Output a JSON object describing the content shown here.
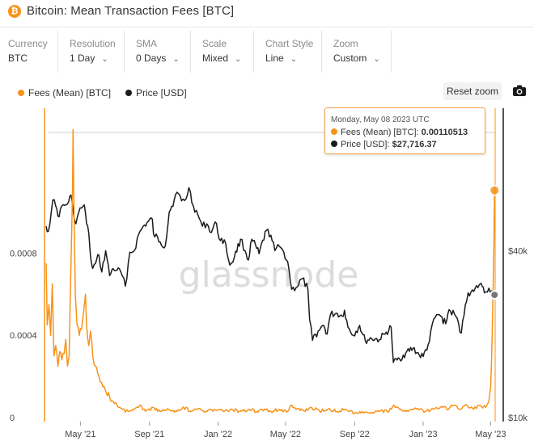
{
  "header": {
    "logo_letter": "₿",
    "title": "Bitcoin: Mean Transaction Fees [BTC]"
  },
  "controls": [
    {
      "label": "Currency",
      "value": "BTC"
    },
    {
      "label": "Resolution",
      "value": "1 Day"
    },
    {
      "label": "SMA",
      "value": "0 Days"
    },
    {
      "label": "Scale",
      "value": "Mixed"
    },
    {
      "label": "Chart Style",
      "value": "Line"
    },
    {
      "label": "Zoom",
      "value": "Custom"
    }
  ],
  "toolbar": {
    "reset_zoom": "Reset zoom",
    "camera_icon": "camera-icon"
  },
  "colors": {
    "fees": "#f7931a",
    "price": "#1a1a1a",
    "watermark": "#dcdcdc"
  },
  "tooltip": {
    "date": "Monday, May 08 2023 UTC",
    "fees_label": "Fees (Mean) [BTC]:",
    "fees_value": "0.00110513",
    "price_label": "Price [USD]:",
    "price_value": "$27,716.37"
  },
  "watermark": "glassnode",
  "chart_data": {
    "type": "line",
    "title": "Bitcoin: Mean Transaction Fees [BTC]",
    "x_ticks": [
      "May '21",
      "Sep '21",
      "Jan '22",
      "May '22",
      "Sep '22",
      "Jan '23",
      "May '23"
    ],
    "x_range": [
      "2021-03-01",
      "2023-05-12"
    ],
    "y_left": {
      "ticks": [
        "0",
        "0.0004",
        "0.0008"
      ],
      "range": [
        0,
        0.00143
      ],
      "scale": "linear"
    },
    "y_right": {
      "ticks": [
        "$10k",
        "$40k"
      ],
      "range": [
        10000,
        115000
      ],
      "scale": "log"
    },
    "legend_position": "top-left",
    "grid": false,
    "series": [
      {
        "name": "Fees (Mean) [BTC]",
        "axis": "left",
        "points": [
          [
            "2021-03-01",
            0.00075
          ],
          [
            "2021-03-03",
            0.00045
          ],
          [
            "2021-03-06",
            0.00055
          ],
          [
            "2021-03-09",
            0.0004
          ],
          [
            "2021-03-12",
            0.00065
          ],
          [
            "2021-03-15",
            0.0003
          ],
          [
            "2021-03-18",
            0.00035
          ],
          [
            "2021-03-22",
            0.00025
          ],
          [
            "2021-03-25",
            0.00032
          ],
          [
            "2021-03-29",
            0.00028
          ],
          [
            "2021-04-02",
            0.00031
          ],
          [
            "2021-04-05",
            0.00038
          ],
          [
            "2021-04-08",
            0.00025
          ],
          [
            "2021-04-11",
            0.0003
          ],
          [
            "2021-04-13",
            0.0006
          ],
          [
            "2021-04-15",
            0.00085
          ],
          [
            "2021-04-17",
            0.0011
          ],
          [
            "2021-04-18",
            0.0014
          ],
          [
            "2021-04-19",
            0.00115
          ],
          [
            "2021-04-20",
            0.00095
          ],
          [
            "2021-04-22",
            0.0006
          ],
          [
            "2021-04-25",
            0.00045
          ],
          [
            "2021-04-29",
            0.0004
          ],
          [
            "2021-05-03",
            0.00043
          ],
          [
            "2021-05-07",
            0.00052
          ],
          [
            "2021-05-10",
            0.0006
          ],
          [
            "2021-05-12",
            0.00045
          ],
          [
            "2021-05-16",
            0.00035
          ],
          [
            "2021-05-19",
            0.00042
          ],
          [
            "2021-05-23",
            0.0003
          ],
          [
            "2021-05-28",
            0.00025
          ],
          [
            "2021-06-03",
            0.0002
          ],
          [
            "2021-06-10",
            0.00015
          ],
          [
            "2021-06-16",
            0.00012
          ],
          [
            "2021-06-22",
            0.0001
          ],
          [
            "2021-06-28",
            8e-05
          ],
          [
            "2021-07-05",
            6e-05
          ],
          [
            "2021-07-15",
            4e-05
          ],
          [
            "2021-07-25",
            3e-05
          ],
          [
            "2021-08-05",
            4e-05
          ],
          [
            "2021-08-15",
            6e-05
          ],
          [
            "2021-08-25",
            3e-05
          ],
          [
            "2021-09-07",
            5e-05
          ],
          [
            "2021-09-20",
            3e-05
          ],
          [
            "2021-10-05",
            4e-05
          ],
          [
            "2021-10-20",
            3e-05
          ],
          [
            "2021-11-05",
            5e-05
          ],
          [
            "2021-11-12",
            3e-05
          ],
          [
            "2021-11-25",
            4e-05
          ],
          [
            "2021-12-10",
            3e-05
          ],
          [
            "2021-12-25",
            4e-05
          ],
          [
            "2022-01-10",
            3e-05
          ],
          [
            "2022-01-25",
            4e-05
          ],
          [
            "2022-02-10",
            3e-05
          ],
          [
            "2022-02-25",
            4e-05
          ],
          [
            "2022-03-10",
            3e-05
          ],
          [
            "2022-03-20",
            4e-05
          ],
          [
            "2022-04-05",
            3e-05
          ],
          [
            "2022-04-20",
            4e-05
          ],
          [
            "2022-05-05",
            3e-05
          ],
          [
            "2022-05-12",
            6e-05
          ],
          [
            "2022-05-20",
            4e-05
          ],
          [
            "2022-06-05",
            3e-05
          ],
          [
            "2022-06-15",
            5e-05
          ],
          [
            "2022-07-01",
            3e-05
          ],
          [
            "2022-07-15",
            4e-05
          ],
          [
            "2022-08-01",
            3e-05
          ],
          [
            "2022-08-15",
            4e-05
          ],
          [
            "2022-09-01",
            2e-05
          ],
          [
            "2022-09-15",
            3e-05
          ],
          [
            "2022-10-01",
            2e-05
          ],
          [
            "2022-10-15",
            3e-05
          ],
          [
            "2022-11-01",
            3e-05
          ],
          [
            "2022-11-10",
            6e-05
          ],
          [
            "2022-11-20",
            4e-05
          ],
          [
            "2022-12-05",
            3e-05
          ],
          [
            "2022-12-20",
            4e-05
          ],
          [
            "2023-01-05",
            3e-05
          ],
          [
            "2023-01-20",
            4e-05
          ],
          [
            "2023-02-05",
            5e-05
          ],
          [
            "2023-02-15",
            4e-05
          ],
          [
            "2023-02-25",
            6e-05
          ],
          [
            "2023-03-10",
            4e-05
          ],
          [
            "2023-03-20",
            6e-05
          ],
          [
            "2023-04-01",
            4e-05
          ],
          [
            "2023-04-12",
            6e-05
          ],
          [
            "2023-04-22",
            5e-05
          ],
          [
            "2023-04-28",
            8e-05
          ],
          [
            "2023-05-01",
            0.00015
          ],
          [
            "2023-05-03",
            0.0003
          ],
          [
            "2023-05-05",
            0.00055
          ],
          [
            "2023-05-07",
            0.00085
          ],
          [
            "2023-05-08",
            0.00110513
          ],
          [
            "2023-05-10",
            0.00112
          ]
        ]
      },
      {
        "name": "Price [USD]",
        "axis": "right",
        "points": [
          [
            "2021-03-01",
            49000
          ],
          [
            "2021-03-05",
            47000
          ],
          [
            "2021-03-10",
            55000
          ],
          [
            "2021-03-13",
            61000
          ],
          [
            "2021-03-18",
            58000
          ],
          [
            "2021-03-24",
            53000
          ],
          [
            "2021-03-29",
            58000
          ],
          [
            "2021-04-05",
            58500
          ],
          [
            "2021-04-10",
            60000
          ],
          [
            "2021-04-14",
            63500
          ],
          [
            "2021-04-18",
            56000
          ],
          [
            "2021-04-23",
            50000
          ],
          [
            "2021-04-28",
            55000
          ],
          [
            "2021-05-03",
            57000
          ],
          [
            "2021-05-08",
            58500
          ],
          [
            "2021-05-12",
            50000
          ],
          [
            "2021-05-16",
            46000
          ],
          [
            "2021-05-19",
            38000
          ],
          [
            "2021-05-23",
            34500
          ],
          [
            "2021-05-28",
            36000
          ],
          [
            "2021-06-03",
            38500
          ],
          [
            "2021-06-08",
            33500
          ],
          [
            "2021-06-15",
            40000
          ],
          [
            "2021-06-22",
            32500
          ],
          [
            "2021-06-28",
            34500
          ],
          [
            "2021-07-05",
            34000
          ],
          [
            "2021-07-12",
            33500
          ],
          [
            "2021-07-20",
            29800
          ],
          [
            "2021-07-28",
            39500
          ],
          [
            "2021-08-05",
            40000
          ],
          [
            "2021-08-13",
            46000
          ],
          [
            "2021-08-23",
            49500
          ],
          [
            "2021-09-06",
            52000
          ],
          [
            "2021-09-08",
            46000
          ],
          [
            "2021-09-20",
            43000
          ],
          [
            "2021-09-29",
            41500
          ],
          [
            "2021-10-06",
            55000
          ],
          [
            "2021-10-15",
            61000
          ],
          [
            "2021-10-20",
            65000
          ],
          [
            "2021-10-28",
            60500
          ],
          [
            "2021-11-05",
            61500
          ],
          [
            "2021-11-10",
            67500
          ],
          [
            "2021-11-18",
            58000
          ],
          [
            "2021-11-26",
            54000
          ],
          [
            "2021-12-04",
            49000
          ],
          [
            "2021-12-12",
            50000
          ],
          [
            "2021-12-20",
            46500
          ],
          [
            "2021-12-27",
            50800
          ],
          [
            "2022-01-05",
            43500
          ],
          [
            "2022-01-12",
            43800
          ],
          [
            "2022-01-22",
            35500
          ],
          [
            "2022-01-30",
            37900
          ],
          [
            "2022-02-10",
            44000
          ],
          [
            "2022-02-18",
            40000
          ],
          [
            "2022-02-24",
            37000
          ],
          [
            "2022-03-02",
            44000
          ],
          [
            "2022-03-15",
            39000
          ],
          [
            "2022-03-28",
            47300
          ],
          [
            "2022-04-05",
            45500
          ],
          [
            "2022-04-12",
            40000
          ],
          [
            "2022-04-20",
            41500
          ],
          [
            "2022-04-28",
            39500
          ],
          [
            "2022-05-05",
            36500
          ],
          [
            "2022-05-12",
            29000
          ],
          [
            "2022-05-20",
            29500
          ],
          [
            "2022-05-31",
            31700
          ],
          [
            "2022-06-10",
            29000
          ],
          [
            "2022-06-13",
            22500
          ],
          [
            "2022-06-18",
            19000
          ],
          [
            "2022-06-28",
            20500
          ],
          [
            "2022-07-08",
            21500
          ],
          [
            "2022-07-14",
            20000
          ],
          [
            "2022-07-20",
            23500
          ],
          [
            "2022-07-30",
            23800
          ],
          [
            "2022-08-10",
            23200
          ],
          [
            "2022-08-14",
            24400
          ],
          [
            "2022-08-20",
            21200
          ],
          [
            "2022-08-30",
            19800
          ],
          [
            "2022-09-10",
            21500
          ],
          [
            "2022-09-14",
            20200
          ],
          [
            "2022-09-20",
            18900
          ],
          [
            "2022-10-01",
            19300
          ],
          [
            "2022-10-15",
            19100
          ],
          [
            "2022-10-25",
            20000
          ],
          [
            "2022-11-05",
            21200
          ],
          [
            "2022-11-09",
            15800
          ],
          [
            "2022-11-20",
            16300
          ],
          [
            "2022-12-01",
            17100
          ],
          [
            "2022-12-14",
            17800
          ],
          [
            "2022-12-25",
            16800
          ],
          [
            "2023-01-01",
            16600
          ],
          [
            "2023-01-12",
            18800
          ],
          [
            "2023-01-20",
            22700
          ],
          [
            "2023-01-30",
            23500
          ],
          [
            "2023-02-10",
            21800
          ],
          [
            "2023-02-16",
            24500
          ],
          [
            "2023-02-28",
            23200
          ],
          [
            "2023-03-10",
            20200
          ],
          [
            "2023-03-17",
            25500
          ],
          [
            "2023-03-22",
            28200
          ],
          [
            "2023-04-01",
            28500
          ],
          [
            "2023-04-11",
            30200
          ],
          [
            "2023-04-14",
            30500
          ],
          [
            "2023-04-20",
            28200
          ],
          [
            "2023-04-28",
            29300
          ],
          [
            "2023-05-03",
            28700
          ],
          [
            "2023-05-08",
            27716.37
          ],
          [
            "2023-05-10",
            27600
          ]
        ]
      }
    ]
  }
}
